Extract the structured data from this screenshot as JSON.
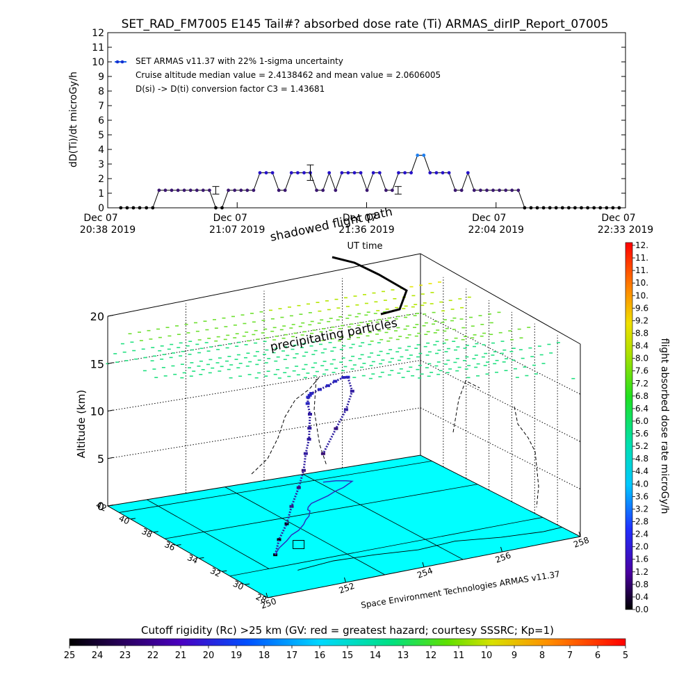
{
  "title": "SET_RAD_FM7005  E145 Tail#? absorbed dose rate (Ti) ARMAS_dirIP_Report_07005",
  "top_chart": {
    "ylabel": "dD(Ti)/dt microGy/h",
    "xlabel": "UT time",
    "yticks": [
      "0",
      "1",
      "2",
      "3",
      "4",
      "5",
      "6",
      "7",
      "8",
      "9",
      "10",
      "11",
      "12"
    ],
    "xticks": [
      {
        "line1": "Dec 07",
        "line2": "20:38 2019"
      },
      {
        "line1": "Dec 07",
        "line2": "21:07 2019"
      },
      {
        "line1": "Dec 07",
        "line2": "21:36 2019"
      },
      {
        "line1": "Dec 07",
        "line2": "22:04 2019"
      },
      {
        "line1": "Dec 07",
        "line2": "22:33 2019"
      }
    ],
    "legend": {
      "series": "SET ARMAS v11.37 with 22% 1-sigma uncertainty",
      "median": "Cruise altitude median value = 2.4138462 and mean value = 2.0606005",
      "conversion": "D(si) -> D(ti) conversion factor C3 = 1.43681"
    }
  },
  "chart_data": [
    {
      "type": "line",
      "title": "SET_RAD_FM7005  E145 Tail#? absorbed dose rate (Ti) ARMAS_dirIP_Report_07005",
      "xlabel": "UT time",
      "ylabel": "dD(Ti)/dt microGy/h",
      "x_unit": "minutes after 20:38 UT, Dec 07 2019",
      "xlim": [
        0,
        115
      ],
      "ylim": [
        0,
        12
      ],
      "grid": false,
      "legend_position": "top-left",
      "series": [
        {
          "name": "SET ARMAS v11.37 with 22% 1-sigma uncertainty",
          "x": [
            2.9,
            4.3,
            5.7,
            7.1,
            8.6,
            10,
            11.4,
            12.8,
            14.2,
            15.6,
            17,
            18.4,
            19.8,
            21.2,
            22.6,
            24,
            25.4,
            26.8,
            28.2,
            29.6,
            31,
            32.4,
            33.8,
            35.2,
            36.6,
            38,
            39.4,
            40.8,
            42.2,
            43.6,
            45,
            46.4,
            47.8,
            49.2,
            50.6,
            52,
            53.4,
            54.8,
            56.2,
            57.6,
            59,
            60.4,
            61.8,
            63.2,
            64.6,
            66,
            67.4,
            68.8,
            70.2,
            71.6,
            73,
            74.4,
            75.8,
            77.2,
            78.6,
            80,
            81.4,
            82.8,
            84.2,
            85.6,
            87,
            88.4,
            89.8,
            91.2,
            92.6,
            94,
            95.4,
            96.8,
            98.2,
            99.6,
            101,
            102.4,
            103.8,
            105.2,
            106.6,
            108,
            109.4,
            110.8,
            112.2,
            113.6
          ],
          "y": [
            0,
            0,
            0,
            0,
            0,
            0,
            1.2,
            1.2,
            1.2,
            1.2,
            1.2,
            1.2,
            1.2,
            1.2,
            1.2,
            0,
            0,
            1.2,
            1.2,
            1.2,
            1.2,
            1.2,
            2.4,
            2.4,
            2.4,
            1.2,
            1.2,
            2.4,
            2.4,
            2.4,
            2.4,
            1.2,
            1.2,
            2.4,
            1.2,
            2.4,
            2.4,
            2.4,
            2.4,
            1.2,
            2.4,
            2.4,
            1.2,
            1.2,
            2.4,
            2.4,
            2.4,
            3.6,
            3.6,
            2.4,
            2.4,
            2.4,
            2.4,
            1.2,
            1.2,
            2.4,
            1.2,
            1.2,
            1.2,
            1.2,
            1.2,
            1.2,
            1.2,
            1.2,
            0,
            0,
            0,
            0,
            0,
            0,
            0,
            0,
            0,
            0,
            0,
            0,
            0,
            0,
            0,
            0
          ]
        }
      ],
      "error_bars": [
        {
          "x": 24,
          "y": 1.2,
          "low": 0.94,
          "high": 1.46
        },
        {
          "x": 45,
          "y": 2.41,
          "low": 1.88,
          "high": 2.94
        },
        {
          "x": 64.5,
          "y": 1.2,
          "low": 0.94,
          "high": 1.46
        }
      ]
    },
    {
      "type": "scatter",
      "title": "",
      "xlabel": "",
      "ylabel": "Altitude (km)",
      "ylim": [
        0,
        20
      ],
      "xlim": [
        250,
        258
      ],
      "latitude_range": [
        28,
        42
      ],
      "grid": true,
      "note": "3D perspective view of ARMAS flight track over cutoff rigidity surface",
      "flight_track": {
        "lon": [
          251.6,
          251.9,
          252.3,
          252.6,
          252.9,
          253.2,
          253.4,
          253.6,
          253.7,
          253.8,
          253.8,
          253.9,
          254.0,
          254.1,
          254.4,
          254.7,
          255.0,
          255.3,
          255.5,
          255.7,
          255.6,
          255.4,
          255.1
        ],
        "lat": [
          32.8,
          33.5,
          34.2,
          34.8,
          35.2,
          35.8,
          36.3,
          36.7,
          37.0,
          37.3,
          37.5,
          37.8,
          38.0,
          38.2,
          38.5,
          38.8,
          39.2,
          39.5,
          39.8,
          40.1,
          40.3,
          40.5,
          40.6
        ],
        "alt_km": [
          0,
          0.9,
          1.8,
          3,
          4.5,
          5.7,
          7,
          8.1,
          9,
          10.2,
          11.2,
          11.6,
          11.6,
          11.6,
          11.6,
          11.6,
          11.6,
          11.6,
          11.3,
          9.5,
          7.5,
          5.5,
          3
        ]
      }
    }
  ],
  "scene": {
    "label_shadowed": "shadowed flight path",
    "label_precipitating": "precipitating particles",
    "ylabel": "Altitude (km)",
    "zticks": [
      "0",
      "5",
      "10",
      "15",
      "20"
    ],
    "lat_ticks": [
      "42",
      "40",
      "38",
      "36",
      "34",
      "32",
      "30",
      "28"
    ],
    "lon_ticks": [
      "250",
      "252",
      "254",
      "256",
      "258"
    ],
    "credit": "Space Environment Technologies ARMAS v11.37",
    "surface_color": "#00ffff"
  },
  "dose_colorbar": {
    "label": "flight absorbed dose rate microGy/h",
    "ticks": [
      "12.",
      "11.",
      "11.",
      "10.",
      "10.",
      "9.6",
      "9.2",
      "8.8",
      "8.4",
      "8.0",
      "7.6",
      "7.2",
      "6.8",
      "6.4",
      "6.0",
      "5.6",
      "5.2",
      "4.8",
      "4.4",
      "4.0",
      "3.6",
      "3.2",
      "2.8",
      "2.4",
      "2.0",
      "1.6",
      "1.2",
      "0.8",
      "0.4",
      "0.0"
    ]
  },
  "rigidity_colorbar": {
    "title": "Cutoff rigidity (Rc) >25 km (GV: red = greatest hazard; courtesy SSSRC; Kp=1)",
    "ticks": [
      "25",
      "24",
      "23",
      "22",
      "21",
      "20",
      "19",
      "18",
      "17",
      "16",
      "15",
      "14",
      "13",
      "12",
      "11",
      "10",
      "9",
      "8",
      "7",
      "6",
      "5"
    ]
  }
}
